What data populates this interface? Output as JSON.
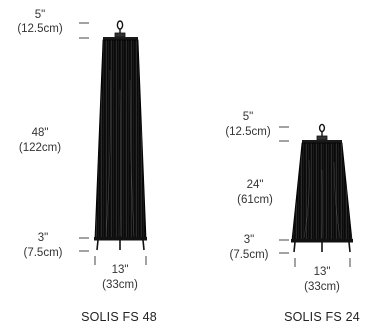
{
  "colors": {
    "lamp_body": "#0a0a0a",
    "pleat_highlight": "#5a5a5a",
    "dimension_line": "#333333",
    "text": "#333333"
  },
  "lamps": [
    {
      "name": "SOLIS FS 48",
      "dims": {
        "top": {
          "imperial": "5\"",
          "metric": "(12.5cm)"
        },
        "shade": {
          "imperial": "48\"",
          "metric": "(122cm)"
        },
        "base": {
          "imperial": "3\"",
          "metric": "(7.5cm)"
        },
        "width": {
          "imperial": "13\"",
          "metric": "(33cm)"
        }
      }
    },
    {
      "name": "SOLIS FS 24",
      "dims": {
        "top": {
          "imperial": "5\"",
          "metric": "(12.5cm)"
        },
        "shade": {
          "imperial": "24\"",
          "metric": "(61cm)"
        },
        "base": {
          "imperial": "3\"",
          "metric": "(7.5cm)"
        },
        "width": {
          "imperial": "13\"",
          "metric": "(33cm)"
        }
      }
    }
  ]
}
